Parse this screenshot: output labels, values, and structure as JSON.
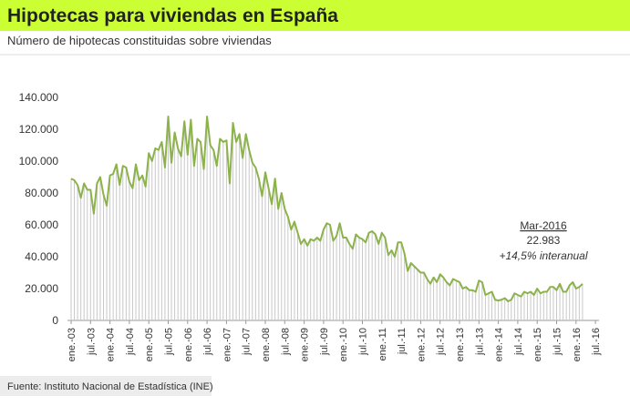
{
  "chart_data": {
    "type": "line",
    "title": "Hipotecas para viviendas en España",
    "subtitle": "Número de hipotecas constituidas sobre viviendas",
    "source": "Fuente: Instituto Nacional de Estadística (INE)",
    "annotation": {
      "date": "Mar-2016",
      "value_text": "22.983",
      "note": "+14,5% interanual"
    },
    "color": "#8cb24b",
    "ylim": [
      0,
      140000
    ],
    "yticks": [
      0,
      {
        "value": 20000,
        "label": "20.000"
      },
      {
        "value": 40000,
        "label": "40.000"
      },
      {
        "value": 60000,
        "label": "60.000"
      },
      {
        "value": 80000,
        "label": "80.000"
      },
      {
        "value": 100000,
        "label": "100.000"
      },
      {
        "value": 120000,
        "label": "120.000"
      },
      {
        "value": 140000,
        "label": "140.000"
      }
    ],
    "categories": [
      "ene.-03",
      null,
      null,
      null,
      null,
      null,
      "jul.-03",
      null,
      null,
      null,
      null,
      null,
      "ene.-04",
      null,
      null,
      null,
      null,
      null,
      "jul.-04",
      null,
      null,
      null,
      null,
      null,
      "ene.-05",
      null,
      null,
      null,
      null,
      null,
      "jul.-05",
      null,
      null,
      null,
      null,
      null,
      "ene.-06",
      null,
      null,
      null,
      null,
      null,
      "jul.-06",
      null,
      null,
      null,
      null,
      null,
      "ene.-07",
      null,
      null,
      null,
      null,
      null,
      "jul.-07",
      null,
      null,
      null,
      null,
      null,
      "ene.-08",
      null,
      null,
      null,
      null,
      null,
      "jul.-08",
      null,
      null,
      null,
      null,
      null,
      "ene.-09",
      null,
      null,
      null,
      null,
      null,
      "jul.-09",
      null,
      null,
      null,
      null,
      null,
      "ene.-10",
      null,
      null,
      null,
      null,
      null,
      "jul.-10",
      null,
      null,
      null,
      null,
      null,
      "ene.-11",
      null,
      null,
      null,
      null,
      null,
      "jul.-11",
      null,
      null,
      null,
      null,
      null,
      "ene.-12",
      null,
      null,
      null,
      null,
      null,
      "jul.-12",
      null,
      null,
      null,
      null,
      null,
      "ene.-13",
      null,
      null,
      null,
      null,
      null,
      "jul.-13",
      null,
      null,
      null,
      null,
      null,
      "ene.-14",
      null,
      null,
      null,
      null,
      null,
      "jul.-14",
      null,
      null,
      null,
      null,
      null,
      "ene.-15",
      null,
      null,
      null,
      null,
      null,
      "jul.-15",
      null,
      null,
      null,
      null,
      null,
      "ene.-16",
      null,
      null,
      null,
      null,
      null,
      "jul.-16"
    ],
    "values": [
      89000,
      88000,
      85000,
      77000,
      86000,
      82000,
      82000,
      67000,
      86000,
      90000,
      79000,
      72000,
      91000,
      92000,
      98000,
      85000,
      97000,
      96000,
      87000,
      83000,
      98000,
      88000,
      91000,
      84000,
      105000,
      100000,
      108000,
      107000,
      112000,
      96000,
      128000,
      99000,
      118000,
      108000,
      103000,
      125000,
      104000,
      126000,
      97000,
      114000,
      112000,
      95000,
      128000,
      110000,
      107000,
      97000,
      114000,
      112000,
      113000,
      86000,
      124000,
      112000,
      117000,
      102000,
      117000,
      107000,
      99000,
      96000,
      89000,
      78000,
      93000,
      83000,
      73000,
      89000,
      70000,
      80000,
      70000,
      65000,
      57000,
      62000,
      55000,
      48000,
      51000,
      47000,
      51000,
      50000,
      52000,
      50000,
      57000,
      61000,
      60000,
      50000,
      53000,
      61000,
      52000,
      52000,
      48000,
      45000,
      54000,
      52000,
      51000,
      49000,
      55000,
      56000,
      54000,
      48000,
      55000,
      52000,
      41000,
      44000,
      40000,
      49000,
      49000,
      42000,
      31000,
      36000,
      34000,
      32000,
      30000,
      30000,
      26000,
      23000,
      27000,
      24000,
      29000,
      27000,
      24000,
      22000,
      26000,
      25000,
      24000,
      20000,
      21000,
      19000,
      19000,
      18000,
      25000,
      24000,
      16000,
      17000,
      18000,
      13000,
      12500,
      13000,
      14000,
      12000,
      13000,
      17000,
      16000,
      15000,
      18000,
      17000,
      18000,
      16000,
      20000,
      17000,
      18000,
      18000,
      21000,
      21000,
      19000,
      23000,
      18000,
      18000,
      22000,
      24000,
      20000,
      21000,
      22983,
      null,
      null,
      null,
      null
    ]
  }
}
